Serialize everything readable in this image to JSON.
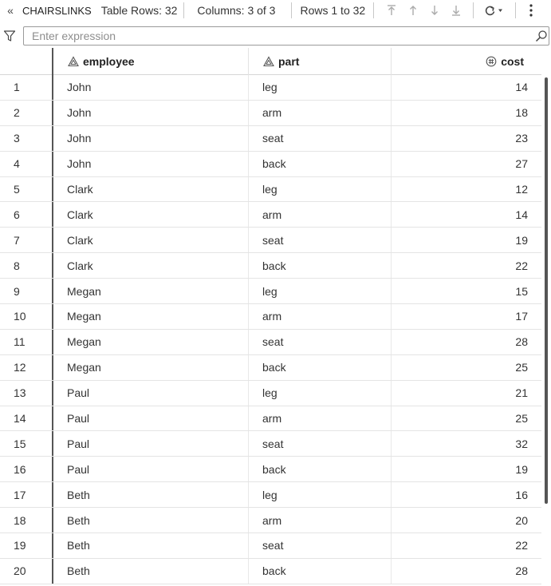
{
  "toolbar": {
    "collapse_glyph": "«",
    "table_name": "CHAIRSLINKS",
    "table_rows": "Table Rows: 32",
    "columns": "Columns: 3 of 3",
    "row_range": "Rows 1 to 32",
    "icons": [
      "first-row-icon",
      "previous-row-icon",
      "next-row-icon",
      "last-row-icon",
      "refresh-icon",
      "more-options-icon"
    ]
  },
  "filter": {
    "placeholder": "Enter expression",
    "value": ""
  },
  "columns": [
    {
      "label": "employee",
      "type_icon": "character-type-icon"
    },
    {
      "label": "part",
      "type_icon": "character-type-icon"
    },
    {
      "label": "cost",
      "type_icon": "numeric-type-icon"
    }
  ],
  "rows": [
    {
      "n": "1",
      "employee": "John",
      "part": "leg",
      "cost": "14"
    },
    {
      "n": "2",
      "employee": "John",
      "part": "arm",
      "cost": "18"
    },
    {
      "n": "3",
      "employee": "John",
      "part": "seat",
      "cost": "23"
    },
    {
      "n": "4",
      "employee": "John",
      "part": "back",
      "cost": "27"
    },
    {
      "n": "5",
      "employee": "Clark",
      "part": "leg",
      "cost": "12"
    },
    {
      "n": "6",
      "employee": "Clark",
      "part": "arm",
      "cost": "14"
    },
    {
      "n": "7",
      "employee": "Clark",
      "part": "seat",
      "cost": "19"
    },
    {
      "n": "8",
      "employee": "Clark",
      "part": "back",
      "cost": "22"
    },
    {
      "n": "9",
      "employee": "Megan",
      "part": "leg",
      "cost": "15"
    },
    {
      "n": "10",
      "employee": "Megan",
      "part": "arm",
      "cost": "17"
    },
    {
      "n": "11",
      "employee": "Megan",
      "part": "seat",
      "cost": "28"
    },
    {
      "n": "12",
      "employee": "Megan",
      "part": "back",
      "cost": "25"
    },
    {
      "n": "13",
      "employee": "Paul",
      "part": "leg",
      "cost": "21"
    },
    {
      "n": "14",
      "employee": "Paul",
      "part": "arm",
      "cost": "25"
    },
    {
      "n": "15",
      "employee": "Paul",
      "part": "seat",
      "cost": "32"
    },
    {
      "n": "16",
      "employee": "Paul",
      "part": "back",
      "cost": "19"
    },
    {
      "n": "17",
      "employee": "Beth",
      "part": "leg",
      "cost": "16"
    },
    {
      "n": "18",
      "employee": "Beth",
      "part": "arm",
      "cost": "20"
    },
    {
      "n": "19",
      "employee": "Beth",
      "part": "seat",
      "cost": "22"
    },
    {
      "n": "20",
      "employee": "Beth",
      "part": "back",
      "cost": "28"
    }
  ]
}
